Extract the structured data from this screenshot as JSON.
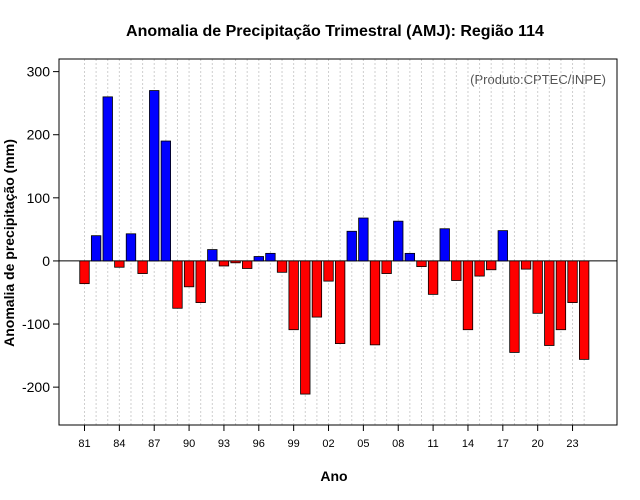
{
  "chart_data": {
    "type": "bar",
    "title": "Anomalia de Precipitação Trimestral (AMJ): Região 114",
    "xlabel": "Ano",
    "ylabel": "Anomalia de precipitação (mm)",
    "credit": "(Produto:CPTEC/INPE)",
    "ylim": [
      -260,
      320
    ],
    "yticks": [
      300,
      200,
      100,
      0,
      -100,
      -200
    ],
    "grid": true,
    "positive_color": "#0000ff",
    "negative_color": "#ff0000",
    "x_tick_labels": [
      "81",
      "84",
      "87",
      "90",
      "93",
      "96",
      "99",
      "02",
      "05",
      "08",
      "11",
      "14",
      "17",
      "20",
      "23"
    ],
    "categories": [
      "1981",
      "1982",
      "1983",
      "1984",
      "1985",
      "1986",
      "1987",
      "1988",
      "1989",
      "1990",
      "1991",
      "1992",
      "1993",
      "1994",
      "1995",
      "1996",
      "1997",
      "1998",
      "1999",
      "2000",
      "2001",
      "2002",
      "2003",
      "2004",
      "2005",
      "2006",
      "2007",
      "2008",
      "2009",
      "2010",
      "2011",
      "2012",
      "2013",
      "2014",
      "2015",
      "2016",
      "2017",
      "2018",
      "2019",
      "2020",
      "2021",
      "2022",
      "2023",
      "2024"
    ],
    "values": [
      -36,
      40,
      260,
      -10,
      43,
      -20,
      270,
      190,
      -75,
      -41,
      -66,
      18,
      -8,
      -3,
      -12,
      7,
      12,
      -18,
      -109,
      -211,
      -89,
      -32,
      -131,
      47,
      68,
      -133,
      -20,
      63,
      12,
      -9,
      -53,
      51,
      -31,
      -109,
      -24,
      -14,
      48,
      -145,
      -13,
      -83,
      -134,
      -109,
      -66,
      -156
    ]
  }
}
